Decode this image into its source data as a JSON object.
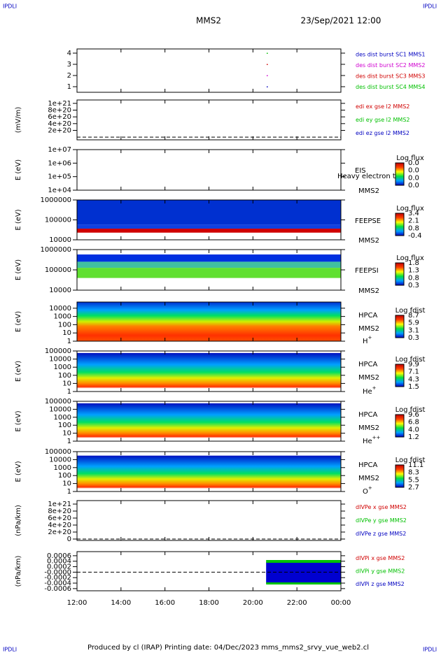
{
  "chart_data": {
    "type": "multi-panel",
    "title": "MMS2",
    "date": "23/Sep/2021 12:00",
    "corner_labels": [
      "IPDLI",
      "IPDLI",
      "IPDLI",
      "IPDLI"
    ],
    "footer": "Produced by cl (IRAP)   Printing date: 04/Dec/2023   mms_mms2_srvy_vue_web2.cl",
    "xlim": [
      12,
      24
    ],
    "xticks": [
      {
        "value": 12,
        "label": "12:00"
      },
      {
        "value": 14,
        "label": "14:00"
      },
      {
        "value": 16,
        "label": "16:00"
      },
      {
        "value": 18,
        "label": "18:00"
      },
      {
        "value": 20,
        "label": "20:00"
      },
      {
        "value": 22,
        "label": "22:00"
      },
      {
        "value": 24,
        "label": "00:00"
      }
    ],
    "panels": [
      {
        "type": "line",
        "ylim": [
          0.5,
          4.375
        ],
        "yticks": [
          1,
          2,
          3,
          4
        ],
        "legend": [
          {
            "text": "des dist burst SC1 MMS1",
            "color": "#0000c0"
          },
          {
            "text": "des dist burst SC2 MMS2",
            "color": "#d000d0"
          },
          {
            "text": "des dist burst SC3 MMS3",
            "color": "#d00000"
          },
          {
            "text": "des dist burst SC4 MMS4",
            "color": "#00c000"
          }
        ]
      },
      {
        "type": "line",
        "ylabel": "(mV/m)",
        "ylim": [
          -8e+19,
          1.1e+21
        ],
        "zero_line": true,
        "yticks": [
          {
            "value": 1e+21,
            "label": "1e+21"
          },
          {
            "value": 8e+20,
            "label": "8e+20"
          },
          {
            "value": 6e+20,
            "label": "6e+20"
          },
          {
            "value": 4e+20,
            "label": "4e+20"
          },
          {
            "value": 2e+20,
            "label": "2e+20"
          }
        ],
        "legend": [
          {
            "text": "edi ex gse l2 MMS2",
            "color": "#d00000"
          },
          {
            "text": "edi ey gse l2 MMS2",
            "color": "#00c000"
          },
          {
            "text": "edi ez gse l2 MMS2",
            "color": "#0000c0"
          }
        ]
      },
      {
        "type": "spectrogram",
        "ylabel": "E (eV)",
        "log": true,
        "ylim": [
          10000,
          10000000
        ],
        "yticks": [
          {
            "value": 10000000,
            "label": "1e+07"
          },
          {
            "value": 1000000,
            "label": "1e+06"
          },
          {
            "value": 100000,
            "label": "1e+05"
          },
          {
            "value": 10000,
            "label": "1e+04"
          }
        ],
        "instrument": "EIS",
        "spacecraft": "MMS2",
        "note": "Heavy electron to",
        "colorbar": {
          "title": "Log flux",
          "labels": [
            "0.0",
            "0.0",
            "0.0",
            "0.0"
          ]
        }
      },
      {
        "type": "spectrogram",
        "ylabel": "E (eV)",
        "log": true,
        "ylim": [
          10000,
          1000000
        ],
        "yticks": [
          1000000,
          100000,
          10000
        ],
        "instrument": "FEEPSE",
        "spacecraft": "MMS2",
        "colorbar": {
          "title": "Log flux",
          "labels": [
            "3.4",
            "2.1",
            "0.8",
            "-0.4"
          ]
        }
      },
      {
        "type": "spectrogram",
        "ylabel": "E (eV)",
        "log": true,
        "ylim": [
          10000,
          1000000
        ],
        "yticks": [
          1000000,
          100000,
          10000
        ],
        "instrument": "FEEPSI",
        "spacecraft": "MMS2",
        "colorbar": {
          "title": "Log flux",
          "labels": [
            "1.8",
            "1.3",
            "0.8",
            "0.3"
          ]
        }
      },
      {
        "type": "spectrogram",
        "ylabel": "E (eV)",
        "log": true,
        "ylim": [
          1,
          56234
        ],
        "yticks": [
          10000,
          1000,
          100,
          10,
          1
        ],
        "instrument": "HPCA",
        "spacecraft": "MMS2",
        "species": {
          "base": "H",
          "sup": "+"
        },
        "colorbar": {
          "title": "Log fdist",
          "labels": [
            "8.7",
            "5.9",
            "3.1",
            "0.3"
          ]
        }
      },
      {
        "type": "spectrogram",
        "ylabel": "E (eV)",
        "log": true,
        "ylim": [
          1,
          100000
        ],
        "yticks": [
          100000,
          10000,
          1000,
          100,
          10,
          1
        ],
        "instrument": "HPCA",
        "spacecraft": "MMS2",
        "species": {
          "base": "He",
          "sup": "+"
        },
        "colorbar": {
          "title": "Log fdist",
          "labels": [
            "9.9",
            "7.1",
            "4.3",
            "1.5"
          ]
        }
      },
      {
        "type": "spectrogram",
        "ylabel": "E (eV)",
        "log": true,
        "ylim": [
          1,
          100000
        ],
        "yticks": [
          100000,
          10000,
          1000,
          100,
          10,
          1
        ],
        "instrument": "HPCA",
        "spacecraft": "MMS2",
        "species": {
          "base": "He",
          "sup": "++"
        },
        "colorbar": {
          "title": "Log fdist",
          "labels": [
            "9.6",
            "6.8",
            "4.0",
            "1.2"
          ]
        }
      },
      {
        "type": "spectrogram",
        "ylabel": "E (eV)",
        "log": true,
        "ylim": [
          1,
          100000
        ],
        "yticks": [
          100000,
          10000,
          1000,
          100,
          10,
          1
        ],
        "instrument": "HPCA",
        "spacecraft": "MMS2",
        "species": {
          "base": "O",
          "sup": "+"
        },
        "colorbar": {
          "title": "Log fdist",
          "labels": [
            "11.1",
            "8.3",
            "5.5",
            "2.7"
          ]
        }
      },
      {
        "type": "line",
        "ylabel": "(nPa/km)",
        "ylim": [
          -4e+19,
          1.1e+21
        ],
        "zero_line": true,
        "yticks": [
          {
            "value": 1e+21,
            "label": "1e+21"
          },
          {
            "value": 8e+20,
            "label": "8e+20"
          },
          {
            "value": 6e+20,
            "label": "6e+20"
          },
          {
            "value": 4e+20,
            "label": "4e+20"
          },
          {
            "value": 2e+20,
            "label": "2e+20"
          },
          0
        ],
        "legend": [
          {
            "text": "dIVPe x gse MMS2",
            "color": "#d00000"
          },
          {
            "text": "dIVPe y gse MMS2",
            "color": "#00c000"
          },
          {
            "text": "dIVPe z gse MMS2",
            "color": "#0000c0"
          }
        ]
      },
      {
        "type": "line",
        "ylabel": "(nPa/km)",
        "ylim": [
          -0.00068,
          0.00075
        ],
        "zero_line": true,
        "yticks": [
          0.0006,
          0.0004,
          0.0002,
          {
            "value": 0,
            "label": "-0.0000"
          },
          -0.0002,
          -0.0004,
          -0.0006
        ],
        "legend": [
          {
            "text": "dIVPi x gse MMS2",
            "color": "#d00000"
          },
          {
            "text": "dIVPi y gse MMS2",
            "color": "#00c000"
          },
          {
            "text": "dIVPi z gse MMS2",
            "color": "#0000c0"
          }
        ]
      }
    ]
  }
}
